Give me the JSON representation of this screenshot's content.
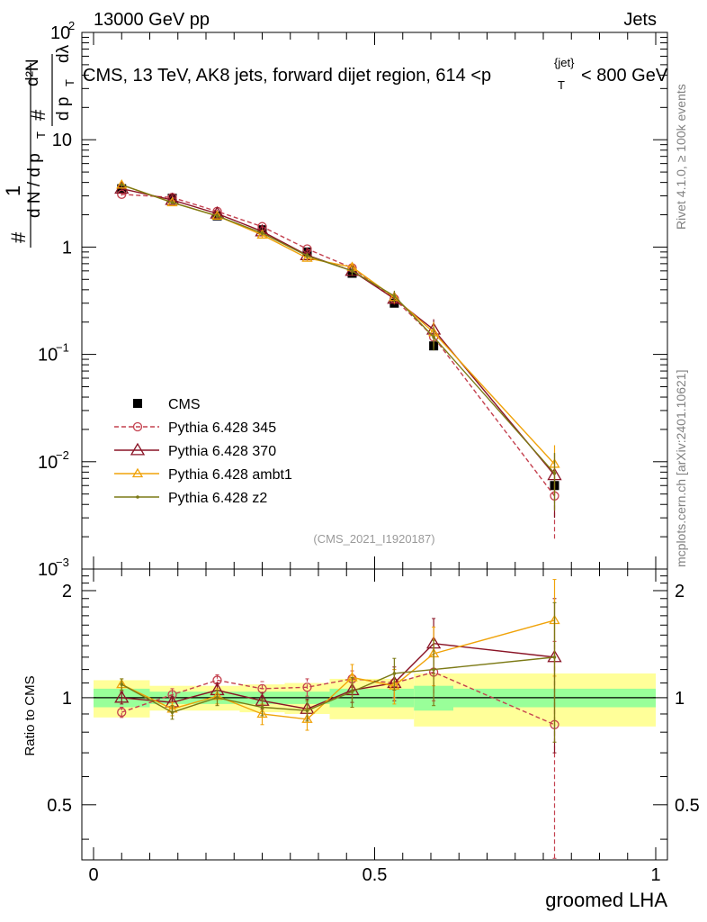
{
  "header": {
    "left": "13000 GeV pp",
    "right": "Jets"
  },
  "side_labels": {
    "rivet": "Rivet 4.1.0, ≥ 100k events",
    "mcplots": "mcplots.cern.ch [arXiv:2401.10621]"
  },
  "chart_data": {
    "type": "scatter",
    "title": "CMS, 13 TeV, AK8 jets, forward dijet region, 614 <p",
    "title_sub": "T",
    "title_sup": "{jet}",
    "title_end": "< 800 GeV",
    "analysis_tag": "(CMS_2021_I1920187)",
    "xlabel": "groomed LHA",
    "ylabel_main_parts": {
      "hash": "#",
      "one": "1",
      "denominator": "d N / d p",
      "sub_t": "T",
      "hash2": "#",
      "num_d2N": "d²N",
      "dpt": "d p",
      "sub_t2": "T",
      "dlambda": "dλ"
    },
    "ylabel_ratio": "Ratio to CMS",
    "xlim": [
      0,
      1
    ],
    "ylim_main": [
      0.001,
      100
    ],
    "ylim_ratio": [
      0.35,
      2.3
    ],
    "x_ticks": [
      0,
      0.5,
      1
    ],
    "x_tick_labels": [
      "0",
      "0.5",
      "1"
    ],
    "y_ticks_main": [
      {
        "base": "10",
        "exp": "2"
      },
      {
        "base": "10",
        "exp": ""
      },
      {
        "base": "1",
        "exp": ""
      },
      {
        "base": "10",
        "exp": "−1"
      },
      {
        "base": "10",
        "exp": "−2"
      },
      {
        "base": "10",
        "exp": "−3"
      }
    ],
    "y_ticks_ratio": [
      2,
      1,
      0.5
    ],
    "y_tick_labels_ratio": [
      "2",
      "1",
      "0.5"
    ],
    "x": [
      0.05,
      0.14,
      0.22,
      0.3,
      0.38,
      0.46,
      0.535,
      0.605,
      0.82
    ],
    "bin_edges": [
      0.0,
      0.1,
      0.18,
      0.26,
      0.34,
      0.42,
      0.5,
      0.57,
      0.64,
      1.0
    ],
    "band_inner": [
      0.06,
      0.04,
      0.04,
      0.04,
      0.04,
      0.06,
      0.06,
      0.08,
      0.06
    ],
    "band_outer": [
      0.12,
      0.08,
      0.08,
      0.09,
      0.1,
      0.13,
      0.13,
      0.17,
      0.17
    ],
    "series": [
      {
        "name": "CMS",
        "color": "#000000",
        "marker": "square",
        "line": "none",
        "values": [
          3.5,
          2.85,
          1.95,
          1.45,
          0.9,
          0.57,
          0.3,
          0.12,
          0.006
        ],
        "ratio": [
          1,
          1,
          1,
          1,
          1,
          1,
          1,
          1,
          1
        ],
        "ratio_err": [
          0,
          0,
          0,
          0,
          0,
          0,
          0,
          0,
          0
        ]
      },
      {
        "name": "Pythia 6.428 345",
        "color": "#c4414f",
        "marker": "circle",
        "line": "dashed",
        "values": [
          3.1,
          2.9,
          2.15,
          1.55,
          0.96,
          0.64,
          0.33,
          0.145,
          0.0048
        ],
        "ratio": [
          0.91,
          1.02,
          1.12,
          1.06,
          1.07,
          1.13,
          1.1,
          1.18,
          0.84
        ],
        "ratio_err": [
          0.03,
          0.04,
          0.04,
          0.05,
          0.06,
          0.06,
          0.1,
          0.2,
          0.6
        ]
      },
      {
        "name": "Pythia 6.428 370",
        "color": "#8a1426",
        "marker": "triangle",
        "line": "solid",
        "values": [
          3.5,
          2.75,
          2.05,
          1.4,
          0.84,
          0.6,
          0.33,
          0.17,
          0.0075
        ],
        "ratio": [
          1.0,
          0.97,
          1.05,
          0.98,
          0.93,
          1.05,
          1.1,
          1.42,
          1.3
        ],
        "ratio_err": [
          0.04,
          0.04,
          0.05,
          0.05,
          0.06,
          0.08,
          0.12,
          0.25,
          0.6
        ]
      },
      {
        "name": "Pythia 6.428 ambt1",
        "color": "#f0a30a",
        "marker": "triangle",
        "line": "solid",
        "values": [
          3.8,
          2.6,
          1.95,
          1.3,
          0.79,
          0.65,
          0.34,
          0.16,
          0.0095
        ],
        "ratio": [
          1.09,
          0.93,
          1.01,
          0.9,
          0.87,
          1.14,
          1.08,
          1.33,
          1.65
        ],
        "ratio_err": [
          0.04,
          0.04,
          0.05,
          0.06,
          0.06,
          0.1,
          0.12,
          0.25,
          0.5
        ]
      },
      {
        "name": "Pythia 6.428 z2",
        "color": "#7c7a16",
        "marker": "dot",
        "line": "solid",
        "values": [
          3.8,
          2.6,
          1.95,
          1.35,
          0.83,
          0.6,
          0.35,
          0.145,
          0.0078
        ],
        "ratio": [
          1.09,
          0.91,
          1.0,
          0.94,
          0.92,
          1.04,
          1.17,
          1.2,
          1.3
        ],
        "ratio_err": [
          0.04,
          0.04,
          0.05,
          0.05,
          0.06,
          0.1,
          0.12,
          0.25,
          0.55
        ]
      }
    ]
  }
}
